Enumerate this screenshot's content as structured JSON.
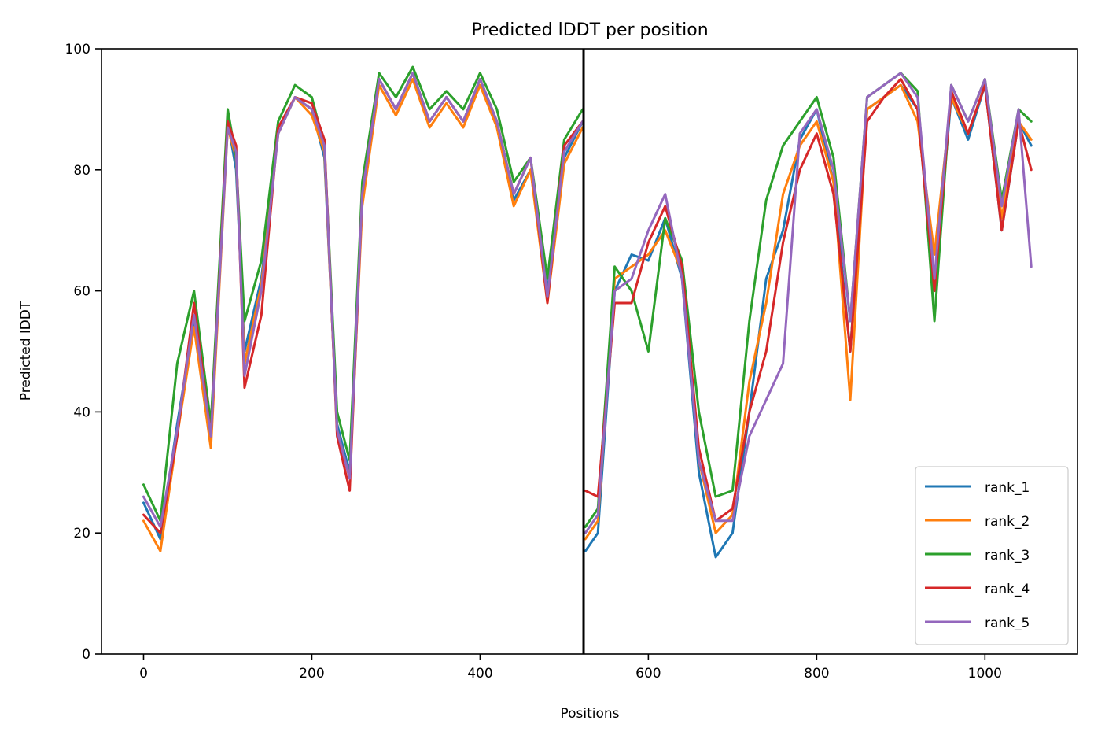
{
  "chart_data": {
    "type": "line",
    "title": "Predicted lDDT per position",
    "xlabel": "Positions",
    "ylabel": "Predicted lDDT",
    "xlim": [
      -50,
      1110
    ],
    "ylim": [
      0,
      100
    ],
    "x_ticks": [
      0,
      200,
      400,
      600,
      800,
      1000
    ],
    "y_ticks": [
      0,
      20,
      40,
      60,
      80,
      100
    ],
    "x_tick_labels": [
      "0",
      "200",
      "400",
      "600",
      "800",
      "1000"
    ],
    "y_tick_labels": [
      "0",
      "20",
      "40",
      "60",
      "80",
      "100"
    ],
    "chain_boundary_x": 523,
    "grid": false,
    "legend_position": "lower right",
    "x": [
      0,
      20,
      40,
      60,
      80,
      100,
      110,
      120,
      140,
      160,
      180,
      200,
      215,
      230,
      245,
      260,
      280,
      300,
      320,
      340,
      360,
      380,
      400,
      420,
      440,
      460,
      480,
      500,
      522,
      525,
      540,
      560,
      580,
      600,
      620,
      640,
      660,
      680,
      700,
      720,
      740,
      760,
      780,
      800,
      820,
      840,
      860,
      880,
      900,
      920,
      940,
      960,
      980,
      1000,
      1020,
      1040,
      1055
    ],
    "series": [
      {
        "name": "rank_1",
        "color": "#1f77b4",
        "values": [
          25,
          19,
          38,
          55,
          35,
          88,
          80,
          50,
          62,
          86,
          92,
          90,
          82,
          38,
          30,
          75,
          95,
          90,
          96,
          88,
          92,
          88,
          95,
          88,
          75,
          80,
          60,
          82,
          88,
          17,
          20,
          60,
          66,
          65,
          72,
          62,
          30,
          16,
          20,
          40,
          62,
          70,
          85,
          90,
          78,
          50,
          90,
          92,
          94,
          90,
          60,
          92,
          85,
          94,
          70,
          88,
          84
        ]
      },
      {
        "name": "rank_2",
        "color": "#ff7f0e",
        "values": [
          22,
          17,
          36,
          54,
          34,
          87,
          82,
          48,
          61,
          86,
          92,
          89,
          83,
          37,
          29,
          74,
          94,
          89,
          95,
          87,
          91,
          87,
          94,
          87,
          74,
          80,
          58,
          81,
          87,
          19,
          22,
          62,
          64,
          66,
          70,
          63,
          32,
          20,
          23,
          45,
          58,
          76,
          84,
          88,
          78,
          42,
          90,
          92,
          94,
          88,
          66,
          92,
          86,
          94,
          72,
          88,
          85
        ]
      },
      {
        "name": "rank_3",
        "color": "#2ca02c",
        "values": [
          28,
          22,
          48,
          60,
          38,
          90,
          82,
          55,
          65,
          88,
          94,
          92,
          84,
          40,
          32,
          78,
          96,
          92,
          97,
          90,
          93,
          90,
          96,
          90,
          78,
          82,
          62,
          85,
          90,
          21,
          24,
          64,
          60,
          50,
          72,
          65,
          40,
          26,
          27,
          55,
          75,
          84,
          88,
          92,
          82,
          55,
          92,
          94,
          96,
          93,
          55,
          94,
          88,
          95,
          75,
          90,
          88
        ]
      },
      {
        "name": "rank_4",
        "color": "#d62728",
        "values": [
          23,
          20,
          36,
          58,
          36,
          88,
          84,
          44,
          56,
          87,
          92,
          91,
          85,
          36,
          27,
          76,
          95,
          90,
          96,
          88,
          92,
          88,
          95,
          88,
          76,
          82,
          58,
          84,
          88,
          27,
          26,
          58,
          58,
          68,
          74,
          64,
          34,
          22,
          24,
          40,
          50,
          68,
          80,
          86,
          76,
          50,
          88,
          92,
          95,
          90,
          60,
          93,
          86,
          94,
          70,
          88,
          80
        ]
      },
      {
        "name": "rank_5",
        "color": "#9467bd",
        "values": [
          26,
          21,
          37,
          56,
          36,
          87,
          83,
          46,
          60,
          86,
          92,
          90,
          84,
          37,
          29,
          76,
          95,
          90,
          96,
          88,
          92,
          88,
          95,
          88,
          76,
          82,
          59,
          83,
          88,
          20,
          23,
          60,
          62,
          70,
          76,
          62,
          32,
          22,
          22,
          36,
          42,
          48,
          86,
          90,
          80,
          55,
          92,
          94,
          96,
          92,
          62,
          94,
          88,
          95,
          74,
          90,
          64
        ]
      }
    ]
  }
}
